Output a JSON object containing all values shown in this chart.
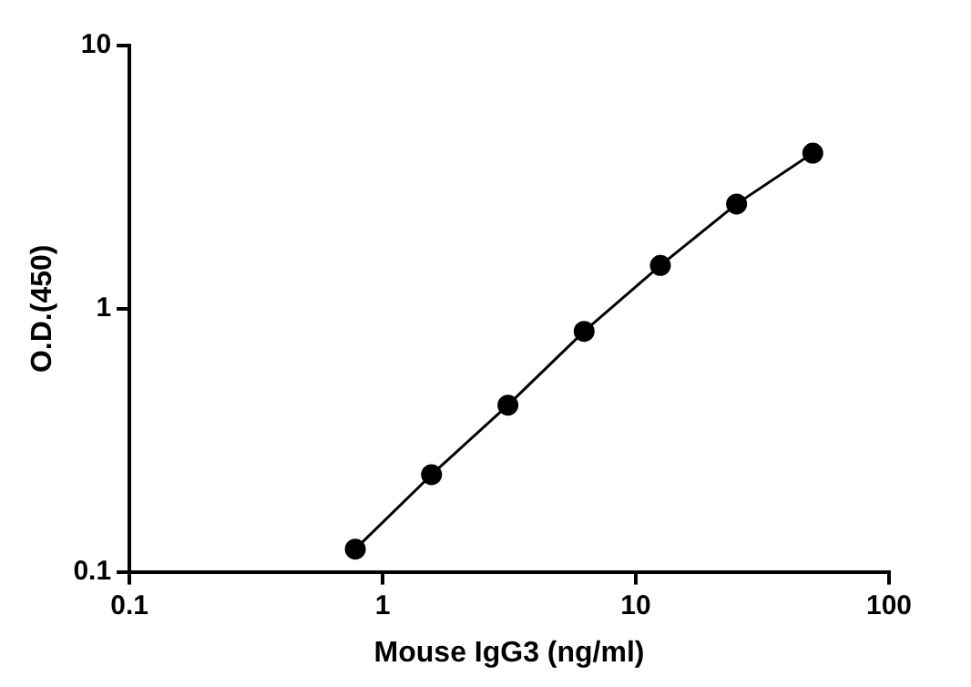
{
  "chart_data": {
    "type": "line",
    "xlabel": "Mouse IgG3 (ng/ml)",
    "ylabel": "O.D.(450)",
    "x": [
      0.78,
      1.56,
      3.125,
      6.25,
      12.5,
      25,
      50
    ],
    "series": [
      {
        "color": "#000000",
        "values": [
          0.122,
          0.234,
          0.43,
          0.82,
          1.46,
          2.5,
          3.9
        ]
      }
    ],
    "log": "xy",
    "xlim": [
      0.1,
      100
    ],
    "xticks": [
      0.1,
      1,
      10,
      100
    ],
    "ylim": [
      0.1,
      10
    ],
    "yticks": [
      0.1,
      1,
      10
    ],
    "marker": "circle",
    "line_style": "solid",
    "grid": false,
    "legend": false
  }
}
